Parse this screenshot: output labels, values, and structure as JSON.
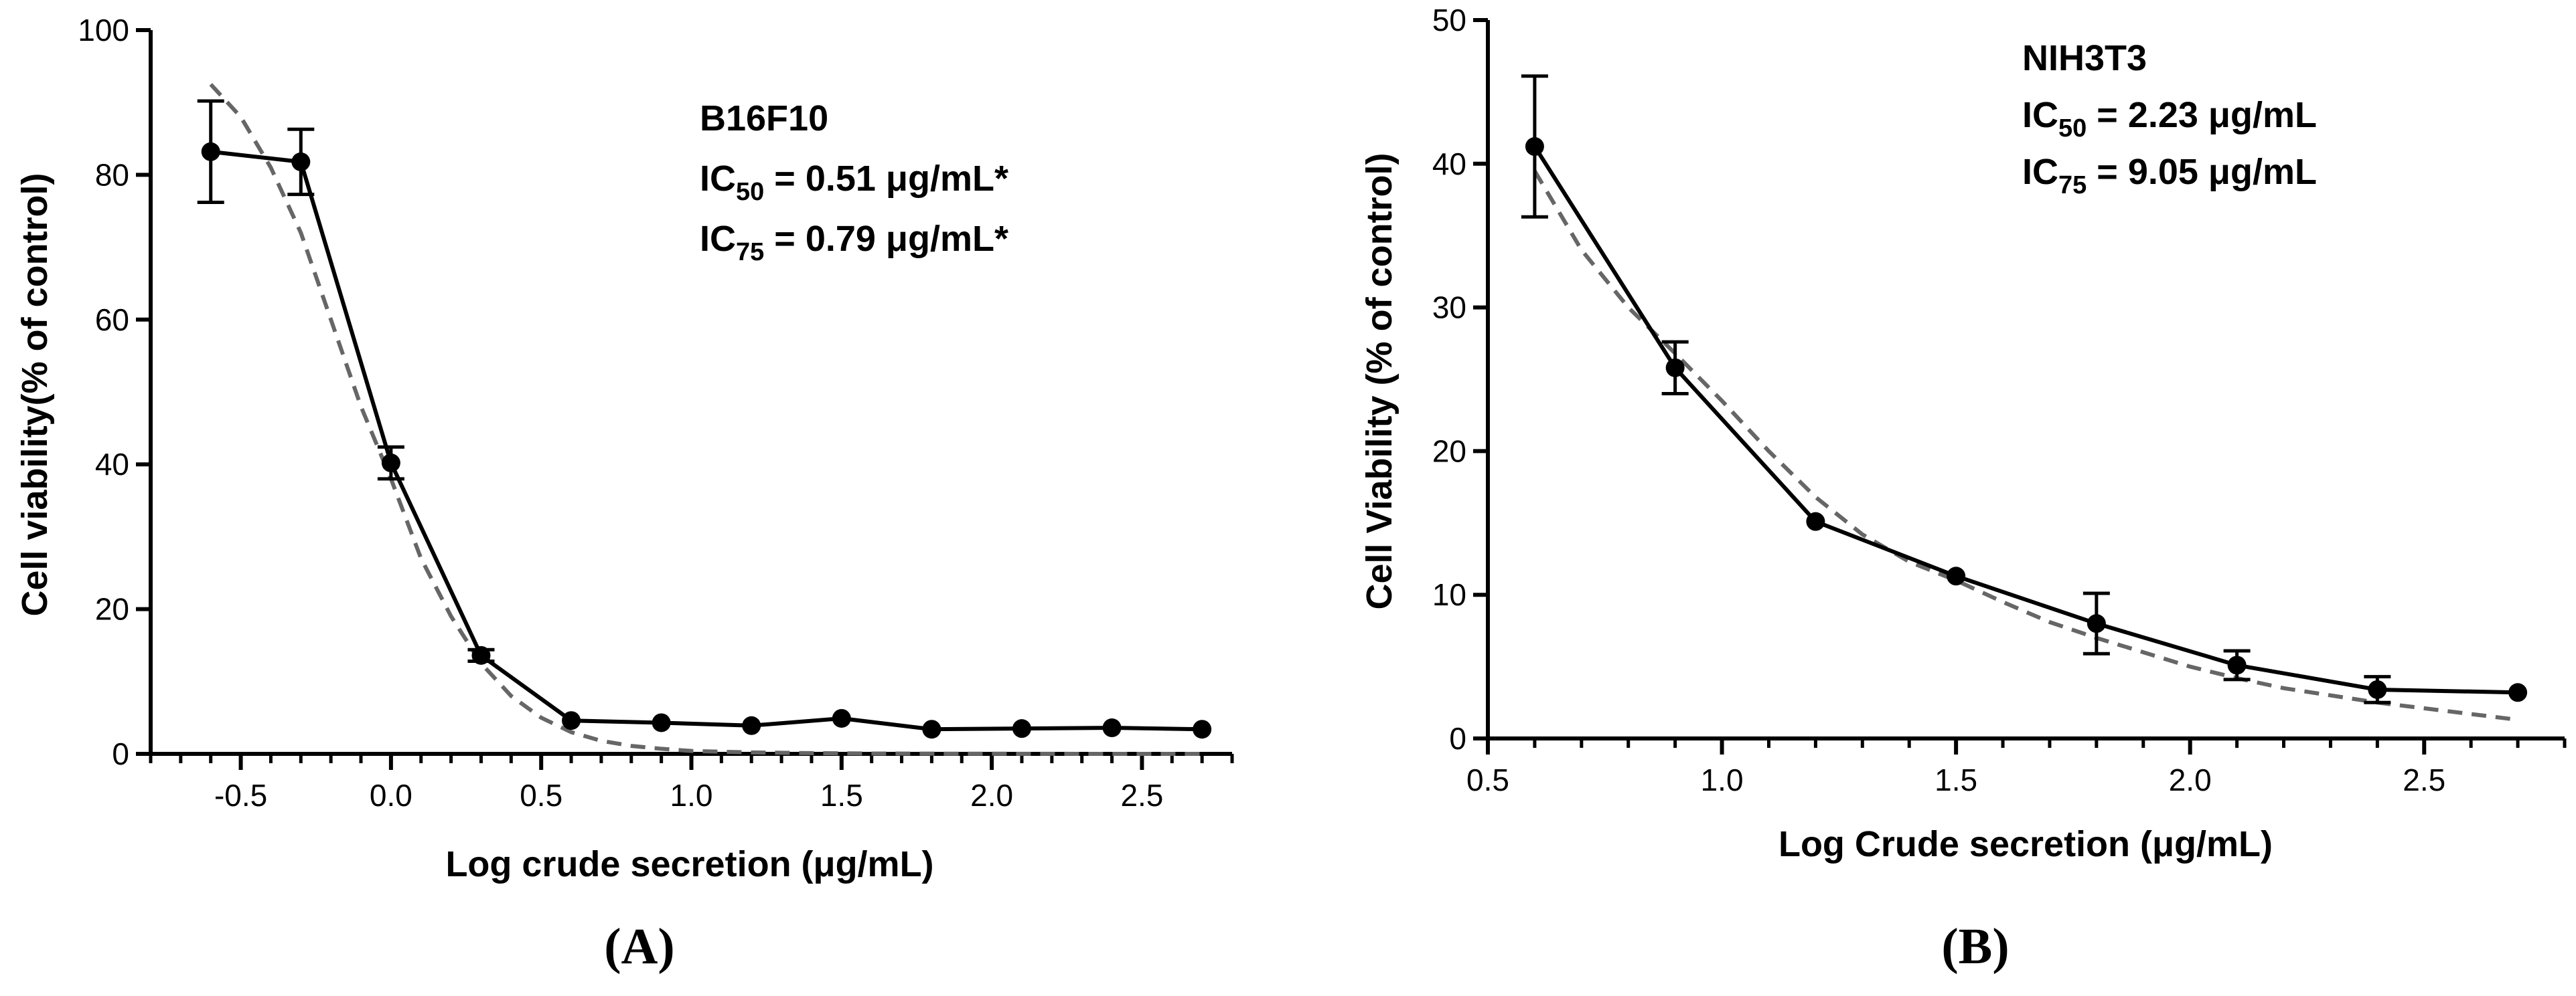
{
  "colors": {
    "data_line": "#000000",
    "fit_line": "#666666",
    "axis": "#000000"
  },
  "chart_data": [
    {
      "type": "line",
      "panel_label": "(A)",
      "xlabel": "Log crude secretion (μg/mL)",
      "ylabel": "Cell viability(% of control)",
      "xlim": [
        -0.8,
        2.8
      ],
      "ylim": [
        0,
        100
      ],
      "x_ticks": [
        -0.5,
        0.0,
        0.5,
        1.0,
        1.5,
        2.0,
        2.5
      ],
      "x_tick_labels": [
        "-0.5",
        "0.0",
        "0.5",
        "1.0",
        "1.5",
        "2.0",
        "2.5"
      ],
      "y_ticks": [
        0,
        20,
        40,
        60,
        80,
        100
      ],
      "y_tick_labels": [
        "0",
        "20",
        "40",
        "60",
        "80",
        "100"
      ],
      "grid": false,
      "annotations": {
        "cell_line": "B16F10",
        "ic50": {
          "prefix": "IC",
          "sub": "50",
          "text": " = 0.51 μg/mL*"
        },
        "ic75": {
          "prefix": "IC",
          "sub": "75",
          "text": " = 0.79 μg/mL*"
        }
      },
      "series": [
        {
          "kind": "measured",
          "x": [
            -0.6,
            -0.3,
            0.0,
            0.3,
            0.6,
            0.9,
            1.2,
            1.5,
            1.8,
            2.1,
            2.4,
            2.7
          ],
          "y": [
            83.2,
            81.8,
            40.2,
            13.6,
            4.6,
            4.3,
            3.9,
            4.9,
            3.4,
            3.5,
            3.6,
            3.4
          ],
          "err": [
            7.0,
            4.5,
            2.2,
            0.8,
            0.5,
            0.5,
            0.4,
            0.5,
            0.3,
            0.3,
            0.3,
            0.3
          ]
        },
        {
          "kind": "fit",
          "x": [
            -0.6,
            -0.5,
            -0.4,
            -0.3,
            -0.2,
            -0.1,
            0.0,
            0.1,
            0.2,
            0.3,
            0.4,
            0.5,
            0.6,
            0.7,
            0.8,
            0.9,
            1.0,
            1.2,
            1.4,
            1.6,
            1.8,
            2.0,
            2.2,
            2.4,
            2.7
          ],
          "y": [
            92.5,
            88.0,
            81.0,
            72.0,
            60.0,
            48.0,
            38.0,
            27.0,
            19.0,
            12.5,
            8.0,
            5.0,
            3.0,
            1.8,
            1.1,
            0.7,
            0.4,
            0.2,
            0.1,
            0.05,
            0.03,
            0.02,
            0.01,
            0.0,
            0.0
          ]
        }
      ]
    },
    {
      "type": "line",
      "panel_label": "(B)",
      "xlabel": "Log Crude secretion (μg/mL)",
      "ylabel": "Cell Viability (% of control)",
      "xlim": [
        0.5,
        2.8
      ],
      "ylim": [
        0,
        50
      ],
      "x_ticks": [
        0.5,
        1.0,
        1.5,
        2.0,
        2.5
      ],
      "x_tick_labels": [
        "0.5",
        "1.0",
        "1.5",
        "2.0",
        "2.5"
      ],
      "y_ticks": [
        0,
        10,
        20,
        30,
        40,
        50
      ],
      "y_tick_labels": [
        "0",
        "10",
        "20",
        "30",
        "40",
        "50"
      ],
      "grid": false,
      "annotations": {
        "cell_line": "NIH3T3",
        "ic50": {
          "prefix": "IC",
          "sub": "50",
          "text": " = 2.23 μg/mL"
        },
        "ic75": {
          "prefix": "IC",
          "sub": "75",
          "text": " = 9.05 μg/mL"
        }
      },
      "series": [
        {
          "kind": "measured",
          "x": [
            0.6,
            0.9,
            1.2,
            1.5,
            1.8,
            2.1,
            2.4,
            2.7
          ],
          "y": [
            41.2,
            25.8,
            15.1,
            11.3,
            8.0,
            5.1,
            3.4,
            3.2
          ],
          "err": [
            4.9,
            1.8,
            0.3,
            0.3,
            2.1,
            1.0,
            0.9,
            0.3
          ]
        },
        {
          "kind": "fit",
          "x": [
            0.6,
            0.7,
            0.8,
            0.9,
            1.0,
            1.1,
            1.2,
            1.3,
            1.4,
            1.5,
            1.6,
            1.7,
            1.8,
            1.9,
            2.0,
            2.1,
            2.2,
            2.3,
            2.4,
            2.5,
            2.6,
            2.7
          ],
          "y": [
            39.5,
            34.0,
            30.0,
            26.8,
            23.5,
            20.0,
            16.8,
            14.2,
            12.3,
            11.0,
            9.5,
            8.1,
            7.0,
            6.0,
            5.0,
            4.2,
            3.5,
            3.0,
            2.5,
            2.1,
            1.7,
            1.3
          ]
        }
      ]
    }
  ]
}
